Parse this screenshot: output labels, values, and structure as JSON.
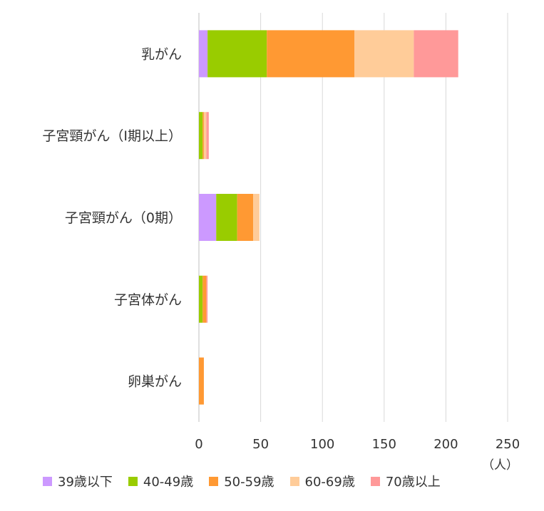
{
  "chart_data": {
    "type": "bar",
    "orientation": "horizontal",
    "stacked": true,
    "categories": [
      "乳がん",
      "子宮頸がん（Ⅰ期以上）",
      "子宮頸がん（0期）",
      "子宮体がん",
      "卵巣がん"
    ],
    "series": [
      {
        "name": "39歳以下",
        "color": "#cc99ff",
        "values": [
          7,
          0,
          14,
          0,
          0
        ]
      },
      {
        "name": "40-49歳",
        "color": "#99cc00",
        "values": [
          48,
          3,
          17,
          3,
          0
        ]
      },
      {
        "name": "50-59歳",
        "color": "#ff9933",
        "values": [
          71,
          1,
          13,
          3,
          4
        ]
      },
      {
        "name": "60-69歳",
        "color": "#ffcc99",
        "values": [
          48,
          2,
          5,
          0,
          0
        ]
      },
      {
        "name": "70歳以上",
        "color": "#ff9999",
        "values": [
          36,
          2,
          0,
          1,
          0
        ]
      }
    ],
    "xlim": [
      0,
      250
    ],
    "xticks": [
      0,
      50,
      100,
      150,
      200,
      250
    ],
    "xunit": "（人）",
    "grid": true,
    "legend_position": "bottom"
  }
}
